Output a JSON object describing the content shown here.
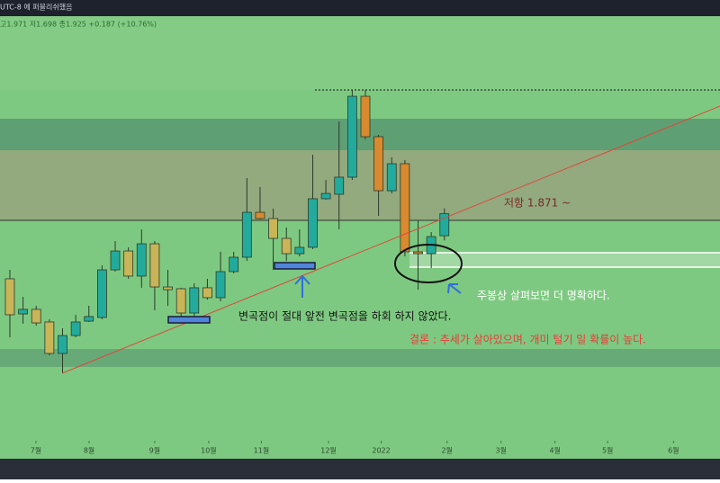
{
  "header": {
    "title": "UTC-8 에 퍼블리쉬했음",
    "ohlc": "고1.971  저1.698  종1.925  +0.187 (+10.76%)"
  },
  "chart_data": {
    "type": "candlestick",
    "x": [
      0,
      1,
      2,
      3,
      4,
      5,
      6,
      7,
      8,
      9,
      10,
      11,
      12,
      13,
      14,
      15,
      16,
      17,
      18,
      19,
      20,
      21,
      22,
      23,
      24,
      25,
      26,
      27,
      28,
      29,
      30,
      31,
      32,
      33
    ],
    "open": [
      1.373,
      1.075,
      1.114,
      1.007,
      0.74,
      0.892,
      1.014,
      1.045,
      1.449,
      1.609,
      1.396,
      1.67,
      1.304,
      1.289,
      1.083,
      1.297,
      1.213,
      1.434,
      1.556,
      1.937,
      1.884,
      1.716,
      1.586,
      1.64,
      2.052,
      2.09,
      2.235,
      2.921,
      2.578,
      2.12,
      2.349,
      1.602,
      1.586,
      1.738
    ],
    "close": [
      1.068,
      1.114,
      0.999,
      0.74,
      0.892,
      1.007,
      1.053,
      1.449,
      1.609,
      1.396,
      1.67,
      1.304,
      1.281,
      1.083,
      1.297,
      1.213,
      1.434,
      1.556,
      1.937,
      1.884,
      1.716,
      1.586,
      1.64,
      2.052,
      2.097,
      2.235,
      2.921,
      2.578,
      2.12,
      2.349,
      1.602,
      1.586,
      1.731,
      1.925
    ],
    "high": [
      1.449,
      1.22,
      1.144,
      1.03,
      0.953,
      1.068,
      1.144,
      1.487,
      1.693,
      1.64,
      1.792,
      1.693,
      1.449,
      1.297,
      1.335,
      1.373,
      1.602,
      1.602,
      2.227,
      2.151,
      1.968,
      1.808,
      1.792,
      2.425,
      2.212,
      2.708,
      2.975,
      2.975,
      2.593,
      2.403,
      2.38,
      1.869,
      1.769,
      1.971
    ],
    "low": [
      0.877,
      0.992,
      0.976,
      0.725,
      0.572,
      0.877,
      1.007,
      1.03,
      1.434,
      1.373,
      1.297,
      1.106,
      1.144,
      1.03,
      1.053,
      1.197,
      1.182,
      1.419,
      1.525,
      1.876,
      1.449,
      1.525,
      1.564,
      1.625,
      2.044,
      1.792,
      2.212,
      2.555,
      1.907,
      2.097,
      1.564,
      1.281,
      1.464,
      1.698
    ],
    "colors": [
      "#c9b458",
      "#22ab9c",
      "#c9b458",
      "#c9b458",
      "#22ab9c",
      "#22ab9c",
      "#22ab9c",
      "#22ab9c",
      "#22ab9c",
      "#c9b458",
      "#22ab9c",
      "#c9b458",
      "#c9b458",
      "#c9b458",
      "#22ab9c",
      "#c9b458",
      "#22ab9c",
      "#22ab9c",
      "#22ab9c",
      "#d98a2e",
      "#c9b458",
      "#c9b458",
      "#22ab9c",
      "#22ab9c",
      "#22ab9c",
      "#22ab9c",
      "#22ab9c",
      "#d98a2e",
      "#d98a2e",
      "#22ab9c",
      "#d98a2e",
      "#d98a2e",
      "#22ab9c",
      "#22ab9c"
    ],
    "xlim": [
      -0.75,
      53.93
    ],
    "ylim": [
      0,
      3.6
    ],
    "xticks": [
      {
        "value": 1.98,
        "label": "7월"
      },
      {
        "value": 6.02,
        "label": "8월"
      },
      {
        "value": 11.0,
        "label": "9월"
      },
      {
        "value": 15.1,
        "label": "10월"
      },
      {
        "value": 19.1,
        "label": "11월"
      },
      {
        "value": 24.2,
        "label": "12월"
      },
      {
        "value": 28.2,
        "label": "2022"
      },
      {
        "value": 33.2,
        "label": "2월"
      },
      {
        "value": 37.3,
        "label": "3월"
      },
      {
        "value": 41.4,
        "label": "4월"
      },
      {
        "value": 45.4,
        "label": "5월"
      },
      {
        "value": 50.4,
        "label": "6월"
      }
    ],
    "annotations": [
      "저항 1.871 ~",
      "주봉상 살펴보면 더 명확하다.",
      "변곡점이 절대 앞전 변곡점을 하회 하지 않았다.",
      "결론 : 추세가 살아있으며, 개미 털기 일 확률이 높다."
    ]
  }
}
